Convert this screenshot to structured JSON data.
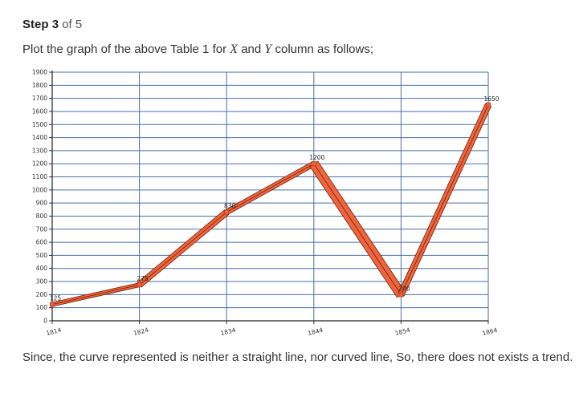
{
  "step": {
    "word": "Step",
    "number": "3",
    "of_label": "of",
    "total": "5"
  },
  "instruction": {
    "prefix": "Plot the graph of the above Table 1 for ",
    "x_var": "X",
    "joiner": " and ",
    "y_var": "Y",
    "suffix": " column as follows;"
  },
  "chart_data": {
    "type": "line",
    "title": "",
    "xlabel": "",
    "ylabel": "",
    "x": [
      1814,
      1824,
      1834,
      1844,
      1854,
      1864
    ],
    "series": [
      {
        "values": [
          125,
          275,
          830,
          1200,
          200,
          1650
        ]
      }
    ],
    "point_labels": [
      "125",
      "275",
      "830",
      "1200",
      "200",
      "1650"
    ],
    "x_ticks": [
      "1814",
      "1824",
      "1834",
      "1844",
      "1854",
      "1864"
    ],
    "y_ticks": [
      "0",
      "100",
      "200",
      "300",
      "400",
      "500",
      "600",
      "700",
      "800",
      "900",
      "1000",
      "1100",
      "1200",
      "1300",
      "1400",
      "1500",
      "1600",
      "1700",
      "1800",
      "1900"
    ],
    "xlim": [
      1814,
      1864
    ],
    "ylim": [
      0,
      1900
    ],
    "grid": true,
    "legend": "none",
    "colors": {
      "line": "#f0643c",
      "outline": "#6a2410",
      "marker": "#cc3b1c",
      "grid": "#4a6fa5"
    }
  },
  "conclusion": "Since, the curve represented is neither a straight line, nor curved line, So, there does not exists a trend."
}
